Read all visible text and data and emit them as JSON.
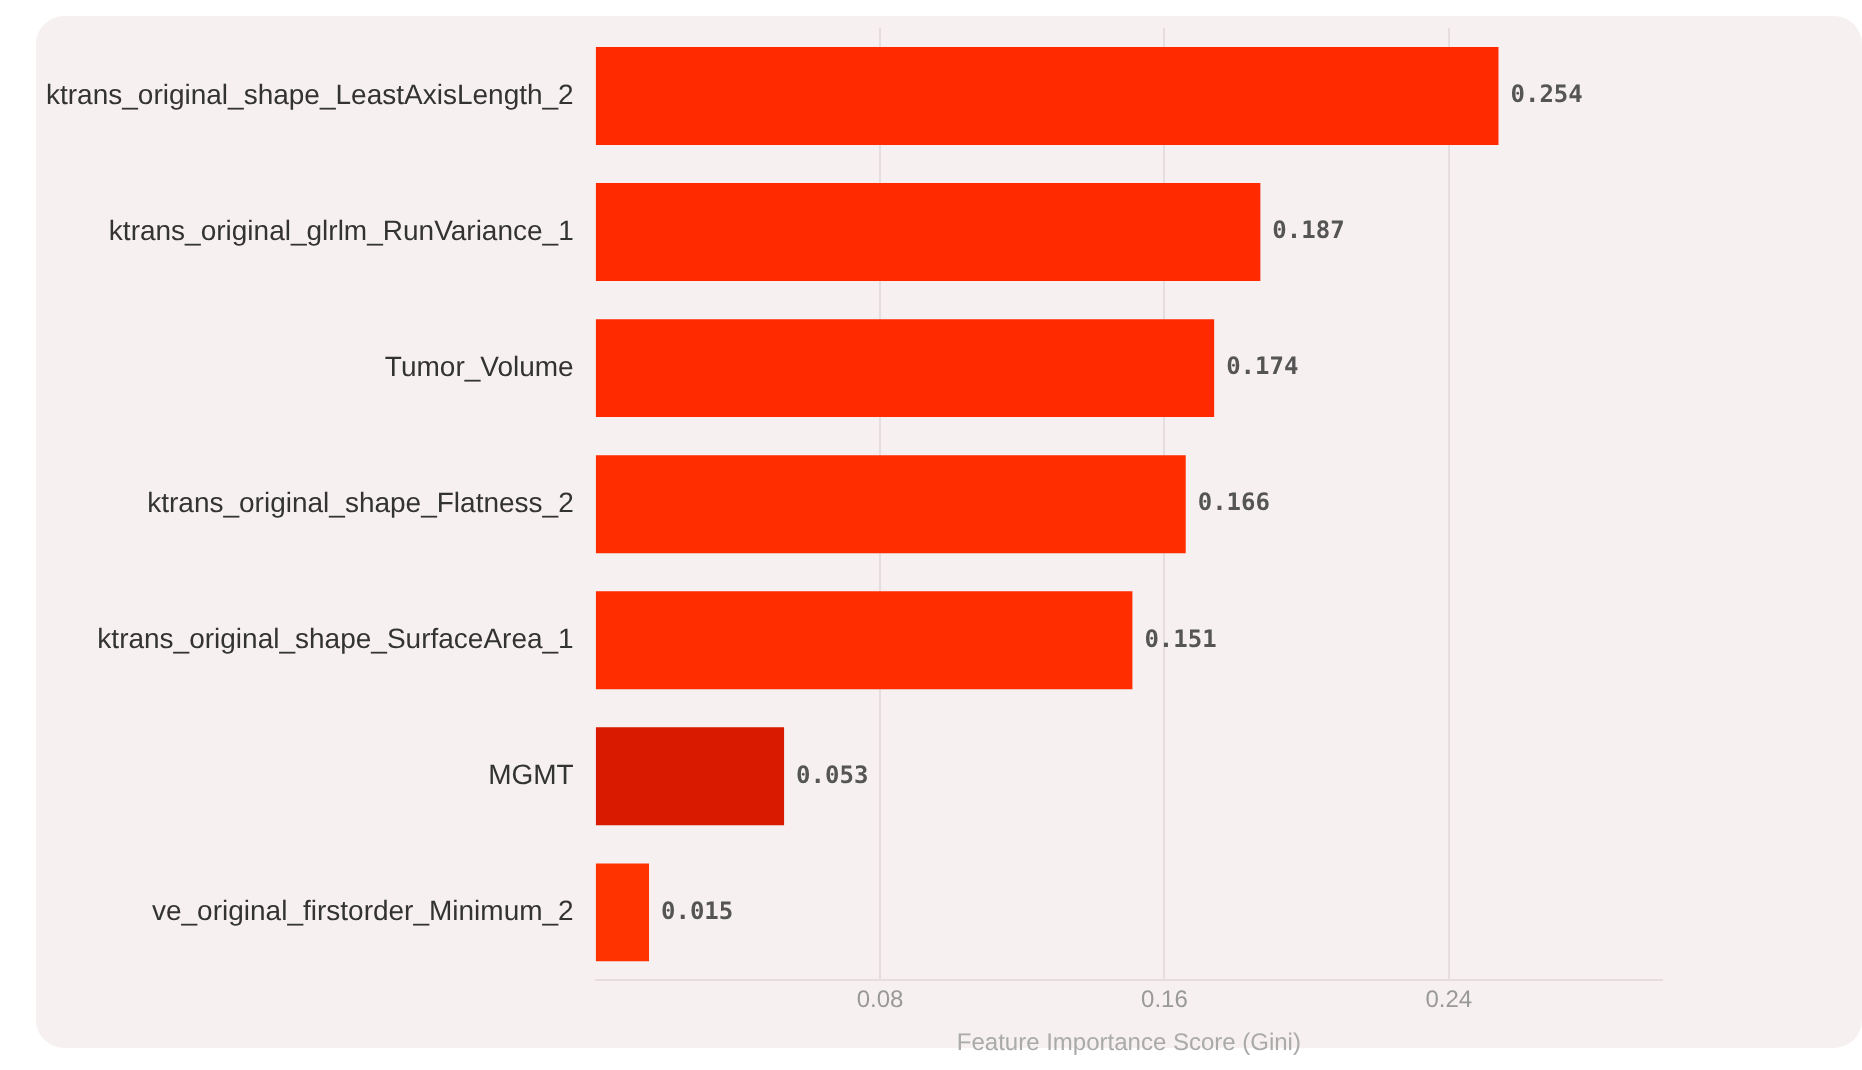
{
  "chart_data": {
    "type": "bar",
    "orientation": "horizontal",
    "xlabel": "Feature Importance Score (Gini)",
    "categories": [
      "ktrans_original_shape_LeastAxisLength_2",
      "ktrans_original_glrlm_RunVariance_1",
      "Tumor_Volume",
      "ktrans_original_shape_Flatness_2",
      "ktrans_original_shape_SurfaceArea_1",
      "MGMT",
      "ve_original_firstorder_Minimum_2"
    ],
    "values": [
      0.254,
      0.187,
      0.174,
      0.166,
      0.151,
      0.053,
      0.015
    ],
    "colors": [
      "#ff2a00",
      "#ff2a00",
      "#ff2a00",
      "#ff2d00",
      "#ff2d00",
      "#d91a00",
      "#ff3300"
    ],
    "xlim": [
      0,
      0.3
    ],
    "xticks": [
      0.08,
      0.16,
      0.24
    ],
    "grid": "x",
    "data_labels": true,
    "legend": false
  }
}
